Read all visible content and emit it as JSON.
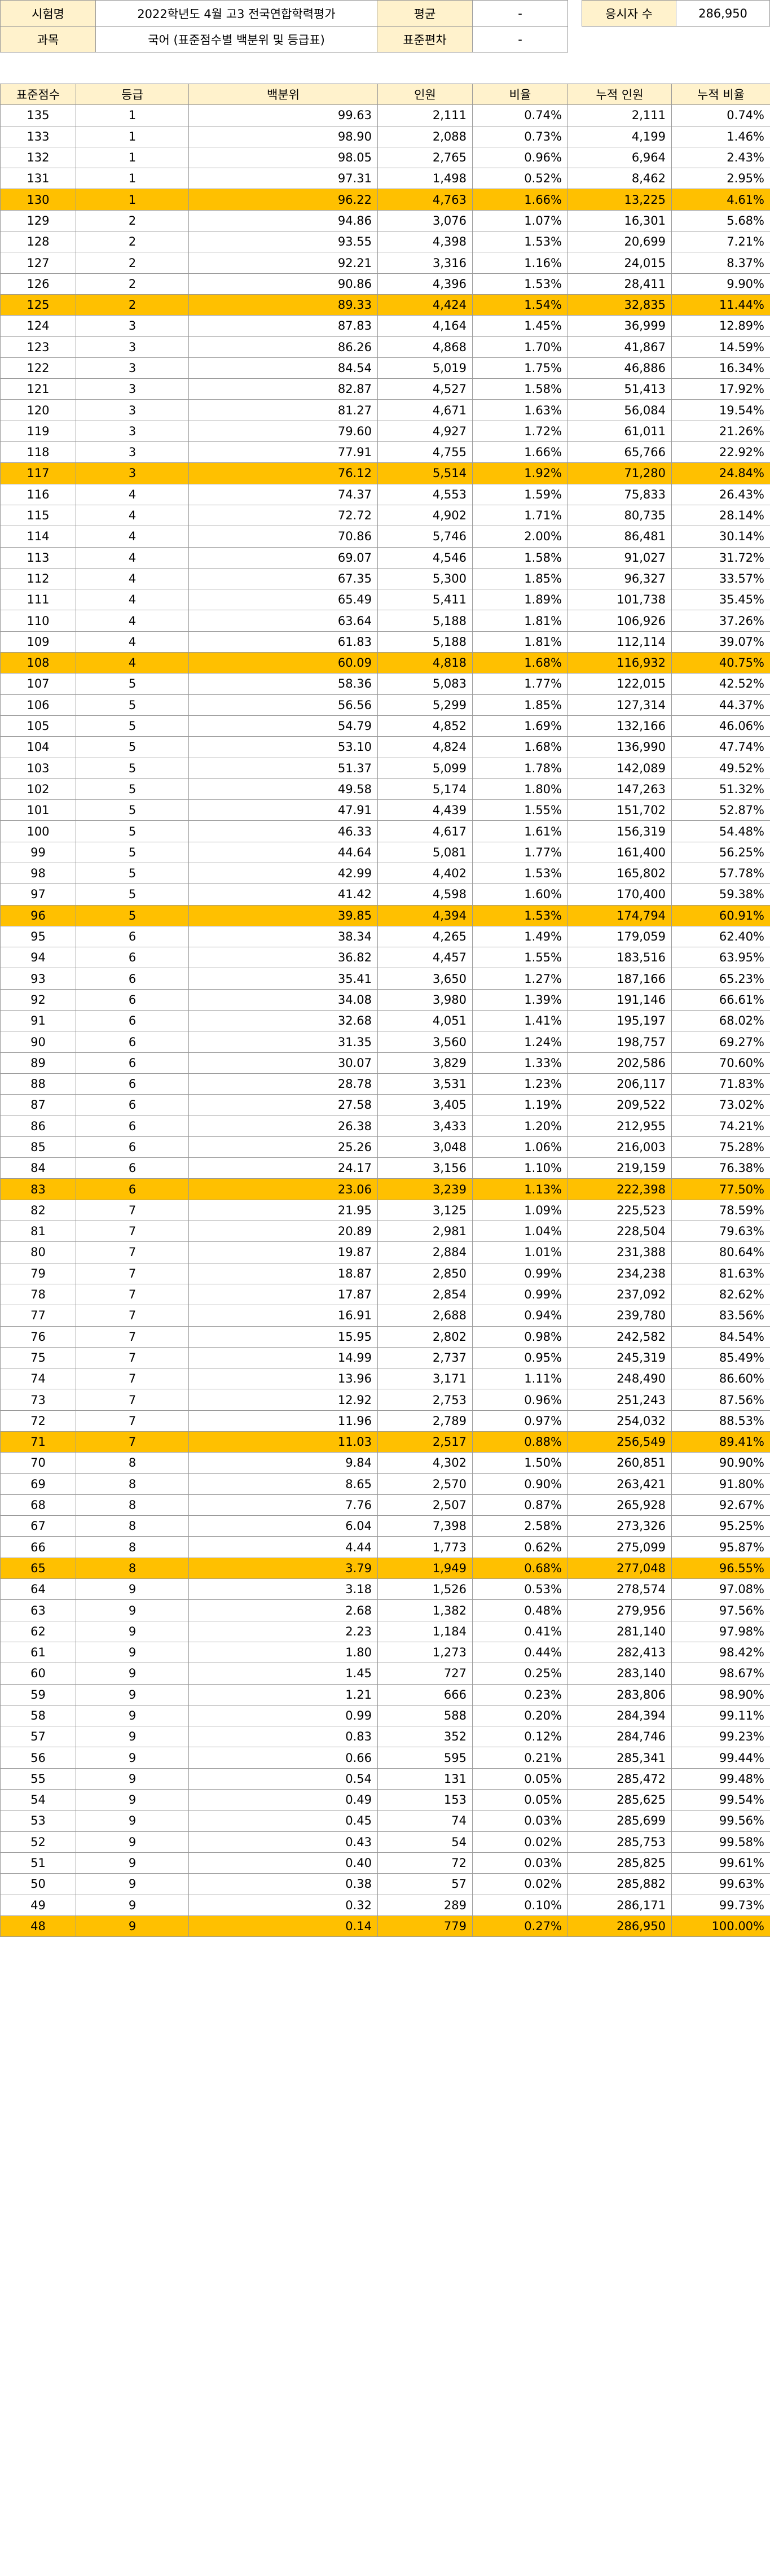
{
  "info": {
    "exam_label": "시험명",
    "exam_value": "2022학년도 4월 고3 전국연합학력평가",
    "subject_label": "과목",
    "subject_value": "국어 (표준점수별 백분위 및 등급표)",
    "mean_label": "평균",
    "mean_value": "-",
    "sd_label": "표준편차",
    "sd_value": "-",
    "takers_label": "응시자 수",
    "takers_value": "286,950"
  },
  "colors": {
    "header_bg": "#fff2cc",
    "highlight_bg": "#ffc000",
    "border": "#999999"
  },
  "columns": [
    "표준점수",
    "등급",
    "백분위",
    "인원",
    "비율",
    "누적 인원",
    "누적 비율"
  ],
  "rows": [
    [
      "135",
      "1",
      "99.63",
      "2,111",
      "0.74%",
      "2,111",
      "0.74%"
    ],
    [
      "133",
      "1",
      "98.90",
      "2,088",
      "0.73%",
      "4,199",
      "1.46%"
    ],
    [
      "132",
      "1",
      "98.05",
      "2,765",
      "0.96%",
      "6,964",
      "2.43%"
    ],
    [
      "131",
      "1",
      "97.31",
      "1,498",
      "0.52%",
      "8,462",
      "2.95%"
    ],
    [
      "130",
      "1",
      "96.22",
      "4,763",
      "1.66%",
      "13,225",
      "4.61%"
    ],
    [
      "129",
      "2",
      "94.86",
      "3,076",
      "1.07%",
      "16,301",
      "5.68%"
    ],
    [
      "128",
      "2",
      "93.55",
      "4,398",
      "1.53%",
      "20,699",
      "7.21%"
    ],
    [
      "127",
      "2",
      "92.21",
      "3,316",
      "1.16%",
      "24,015",
      "8.37%"
    ],
    [
      "126",
      "2",
      "90.86",
      "4,396",
      "1.53%",
      "28,411",
      "9.90%"
    ],
    [
      "125",
      "2",
      "89.33",
      "4,424",
      "1.54%",
      "32,835",
      "11.44%"
    ],
    [
      "124",
      "3",
      "87.83",
      "4,164",
      "1.45%",
      "36,999",
      "12.89%"
    ],
    [
      "123",
      "3",
      "86.26",
      "4,868",
      "1.70%",
      "41,867",
      "14.59%"
    ],
    [
      "122",
      "3",
      "84.54",
      "5,019",
      "1.75%",
      "46,886",
      "16.34%"
    ],
    [
      "121",
      "3",
      "82.87",
      "4,527",
      "1.58%",
      "51,413",
      "17.92%"
    ],
    [
      "120",
      "3",
      "81.27",
      "4,671",
      "1.63%",
      "56,084",
      "19.54%"
    ],
    [
      "119",
      "3",
      "79.60",
      "4,927",
      "1.72%",
      "61,011",
      "21.26%"
    ],
    [
      "118",
      "3",
      "77.91",
      "4,755",
      "1.66%",
      "65,766",
      "22.92%"
    ],
    [
      "117",
      "3",
      "76.12",
      "5,514",
      "1.92%",
      "71,280",
      "24.84%"
    ],
    [
      "116",
      "4",
      "74.37",
      "4,553",
      "1.59%",
      "75,833",
      "26.43%"
    ],
    [
      "115",
      "4",
      "72.72",
      "4,902",
      "1.71%",
      "80,735",
      "28.14%"
    ],
    [
      "114",
      "4",
      "70.86",
      "5,746",
      "2.00%",
      "86,481",
      "30.14%"
    ],
    [
      "113",
      "4",
      "69.07",
      "4,546",
      "1.58%",
      "91,027",
      "31.72%"
    ],
    [
      "112",
      "4",
      "67.35",
      "5,300",
      "1.85%",
      "96,327",
      "33.57%"
    ],
    [
      "111",
      "4",
      "65.49",
      "5,411",
      "1.89%",
      "101,738",
      "35.45%"
    ],
    [
      "110",
      "4",
      "63.64",
      "5,188",
      "1.81%",
      "106,926",
      "37.26%"
    ],
    [
      "109",
      "4",
      "61.83",
      "5,188",
      "1.81%",
      "112,114",
      "39.07%"
    ],
    [
      "108",
      "4",
      "60.09",
      "4,818",
      "1.68%",
      "116,932",
      "40.75%"
    ],
    [
      "107",
      "5",
      "58.36",
      "5,083",
      "1.77%",
      "122,015",
      "42.52%"
    ],
    [
      "106",
      "5",
      "56.56",
      "5,299",
      "1.85%",
      "127,314",
      "44.37%"
    ],
    [
      "105",
      "5",
      "54.79",
      "4,852",
      "1.69%",
      "132,166",
      "46.06%"
    ],
    [
      "104",
      "5",
      "53.10",
      "4,824",
      "1.68%",
      "136,990",
      "47.74%"
    ],
    [
      "103",
      "5",
      "51.37",
      "5,099",
      "1.78%",
      "142,089",
      "49.52%"
    ],
    [
      "102",
      "5",
      "49.58",
      "5,174",
      "1.80%",
      "147,263",
      "51.32%"
    ],
    [
      "101",
      "5",
      "47.91",
      "4,439",
      "1.55%",
      "151,702",
      "52.87%"
    ],
    [
      "100",
      "5",
      "46.33",
      "4,617",
      "1.61%",
      "156,319",
      "54.48%"
    ],
    [
      "99",
      "5",
      "44.64",
      "5,081",
      "1.77%",
      "161,400",
      "56.25%"
    ],
    [
      "98",
      "5",
      "42.99",
      "4,402",
      "1.53%",
      "165,802",
      "57.78%"
    ],
    [
      "97",
      "5",
      "41.42",
      "4,598",
      "1.60%",
      "170,400",
      "59.38%"
    ],
    [
      "96",
      "5",
      "39.85",
      "4,394",
      "1.53%",
      "174,794",
      "60.91%"
    ],
    [
      "95",
      "6",
      "38.34",
      "4,265",
      "1.49%",
      "179,059",
      "62.40%"
    ],
    [
      "94",
      "6",
      "36.82",
      "4,457",
      "1.55%",
      "183,516",
      "63.95%"
    ],
    [
      "93",
      "6",
      "35.41",
      "3,650",
      "1.27%",
      "187,166",
      "65.23%"
    ],
    [
      "92",
      "6",
      "34.08",
      "3,980",
      "1.39%",
      "191,146",
      "66.61%"
    ],
    [
      "91",
      "6",
      "32.68",
      "4,051",
      "1.41%",
      "195,197",
      "68.02%"
    ],
    [
      "90",
      "6",
      "31.35",
      "3,560",
      "1.24%",
      "198,757",
      "69.27%"
    ],
    [
      "89",
      "6",
      "30.07",
      "3,829",
      "1.33%",
      "202,586",
      "70.60%"
    ],
    [
      "88",
      "6",
      "28.78",
      "3,531",
      "1.23%",
      "206,117",
      "71.83%"
    ],
    [
      "87",
      "6",
      "27.58",
      "3,405",
      "1.19%",
      "209,522",
      "73.02%"
    ],
    [
      "86",
      "6",
      "26.38",
      "3,433",
      "1.20%",
      "212,955",
      "74.21%"
    ],
    [
      "85",
      "6",
      "25.26",
      "3,048",
      "1.06%",
      "216,003",
      "75.28%"
    ],
    [
      "84",
      "6",
      "24.17",
      "3,156",
      "1.10%",
      "219,159",
      "76.38%"
    ],
    [
      "83",
      "6",
      "23.06",
      "3,239",
      "1.13%",
      "222,398",
      "77.50%"
    ],
    [
      "82",
      "7",
      "21.95",
      "3,125",
      "1.09%",
      "225,523",
      "78.59%"
    ],
    [
      "81",
      "7",
      "20.89",
      "2,981",
      "1.04%",
      "228,504",
      "79.63%"
    ],
    [
      "80",
      "7",
      "19.87",
      "2,884",
      "1.01%",
      "231,388",
      "80.64%"
    ],
    [
      "79",
      "7",
      "18.87",
      "2,850",
      "0.99%",
      "234,238",
      "81.63%"
    ],
    [
      "78",
      "7",
      "17.87",
      "2,854",
      "0.99%",
      "237,092",
      "82.62%"
    ],
    [
      "77",
      "7",
      "16.91",
      "2,688",
      "0.94%",
      "239,780",
      "83.56%"
    ],
    [
      "76",
      "7",
      "15.95",
      "2,802",
      "0.98%",
      "242,582",
      "84.54%"
    ],
    [
      "75",
      "7",
      "14.99",
      "2,737",
      "0.95%",
      "245,319",
      "85.49%"
    ],
    [
      "74",
      "7",
      "13.96",
      "3,171",
      "1.11%",
      "248,490",
      "86.60%"
    ],
    [
      "73",
      "7",
      "12.92",
      "2,753",
      "0.96%",
      "251,243",
      "87.56%"
    ],
    [
      "72",
      "7",
      "11.96",
      "2,789",
      "0.97%",
      "254,032",
      "88.53%"
    ],
    [
      "71",
      "7",
      "11.03",
      "2,517",
      "0.88%",
      "256,549",
      "89.41%"
    ],
    [
      "70",
      "8",
      "9.84",
      "4,302",
      "1.50%",
      "260,851",
      "90.90%"
    ],
    [
      "69",
      "8",
      "8.65",
      "2,570",
      "0.90%",
      "263,421",
      "91.80%"
    ],
    [
      "68",
      "8",
      "7.76",
      "2,507",
      "0.87%",
      "265,928",
      "92.67%"
    ],
    [
      "67",
      "8",
      "6.04",
      "7,398",
      "2.58%",
      "273,326",
      "95.25%"
    ],
    [
      "66",
      "8",
      "4.44",
      "1,773",
      "0.62%",
      "275,099",
      "95.87%"
    ],
    [
      "65",
      "8",
      "3.79",
      "1,949",
      "0.68%",
      "277,048",
      "96.55%"
    ],
    [
      "64",
      "9",
      "3.18",
      "1,526",
      "0.53%",
      "278,574",
      "97.08%"
    ],
    [
      "63",
      "9",
      "2.68",
      "1,382",
      "0.48%",
      "279,956",
      "97.56%"
    ],
    [
      "62",
      "9",
      "2.23",
      "1,184",
      "0.41%",
      "281,140",
      "97.98%"
    ],
    [
      "61",
      "9",
      "1.80",
      "1,273",
      "0.44%",
      "282,413",
      "98.42%"
    ],
    [
      "60",
      "9",
      "1.45",
      "727",
      "0.25%",
      "283,140",
      "98.67%"
    ],
    [
      "59",
      "9",
      "1.21",
      "666",
      "0.23%",
      "283,806",
      "98.90%"
    ],
    [
      "58",
      "9",
      "0.99",
      "588",
      "0.20%",
      "284,394",
      "99.11%"
    ],
    [
      "57",
      "9",
      "0.83",
      "352",
      "0.12%",
      "284,746",
      "99.23%"
    ],
    [
      "56",
      "9",
      "0.66",
      "595",
      "0.21%",
      "285,341",
      "99.44%"
    ],
    [
      "55",
      "9",
      "0.54",
      "131",
      "0.05%",
      "285,472",
      "99.48%"
    ],
    [
      "54",
      "9",
      "0.49",
      "153",
      "0.05%",
      "285,625",
      "99.54%"
    ],
    [
      "53",
      "9",
      "0.45",
      "74",
      "0.03%",
      "285,699",
      "99.56%"
    ],
    [
      "52",
      "9",
      "0.43",
      "54",
      "0.02%",
      "285,753",
      "99.58%"
    ],
    [
      "51",
      "9",
      "0.40",
      "72",
      "0.03%",
      "285,825",
      "99.61%"
    ],
    [
      "50",
      "9",
      "0.38",
      "57",
      "0.02%",
      "285,882",
      "99.63%"
    ],
    [
      "49",
      "9",
      "0.32",
      "289",
      "0.10%",
      "286,171",
      "99.73%"
    ],
    [
      "48",
      "9",
      "0.14",
      "779",
      "0.27%",
      "286,950",
      "100.00%"
    ]
  ],
  "highlight_scores": [
    "130",
    "125",
    "117",
    "108",
    "96",
    "83",
    "71",
    "65",
    "48"
  ]
}
